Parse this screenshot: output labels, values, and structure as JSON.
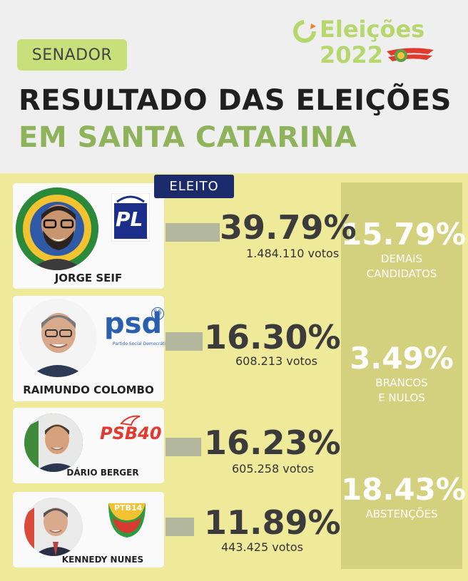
{
  "header": {
    "position_badge": "SENADOR",
    "title_line1": "RESULTADO DAS ELEIÇÕES",
    "title_line2": "EM SANTA CATARINA",
    "logo_line1": "Eleições",
    "logo_line2": "2022"
  },
  "elected_badge": "ELEITO",
  "candidates": [
    {
      "name": "JORGE SEIF",
      "party": "PL",
      "percent": "39.79%",
      "votes": "1.484.110 votos",
      "elected": true
    },
    {
      "name": "RAIMUNDO COLOMBO",
      "party": "psd",
      "party_number": "55",
      "party_subtitle": "Partido Social Democrático",
      "percent": "16.30%",
      "votes": "608.213 votos",
      "elected": false
    },
    {
      "name": "DÁRIO BERGER",
      "party": "PSB40",
      "percent": "16.23%",
      "votes": "605.258 votos",
      "elected": false
    },
    {
      "name": "KENNEDY NUNES",
      "party": "PTB14",
      "percent": "11.89%",
      "votes": "443.425 votos",
      "elected": false
    }
  ],
  "stats": [
    {
      "value": "15.79%",
      "label": "DEMAIS\nCANDIDATOS"
    },
    {
      "value": "3.49%",
      "label": "BRANCOS\nE NULOS"
    },
    {
      "value": "18.43%",
      "label": "ABSTENÇÕES"
    }
  ],
  "colors": {
    "background": "#efe99a",
    "header_bg": "#efefef",
    "accent_green": "#8fb35a",
    "stats_panel": "#d4d17e",
    "bar": "#b3b79e",
    "elected_badge": "#1b2a6b"
  }
}
